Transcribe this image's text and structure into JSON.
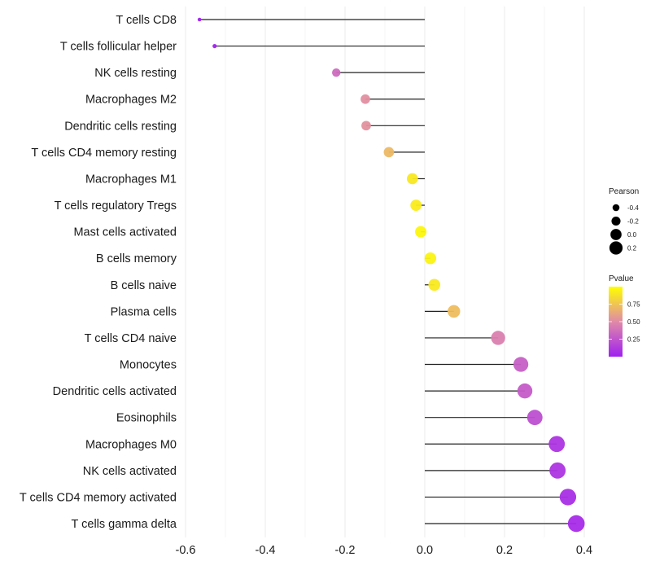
{
  "chart_data": {
    "type": "lollipop",
    "title": "",
    "xlabel": "",
    "ylabel": "",
    "xlim": [
      -0.6,
      0.4
    ],
    "x_ticks": [
      -0.6,
      -0.4,
      -0.2,
      0.0,
      0.2,
      0.4
    ],
    "x_tick_labels": [
      "-0.6",
      "-0.4",
      "-0.2",
      "0.0",
      "0.2",
      "0.4"
    ],
    "grid": true,
    "categories": [
      "T cells CD8",
      "T cells follicular helper",
      "NK cells resting",
      "Macrophages M2",
      "Dendritic cells resting",
      "T cells CD4 memory resting",
      "Macrophages M1",
      "T cells regulatory  Tregs ",
      "Mast cells activated",
      "B cells memory",
      "B cells naive",
      "Plasma cells",
      "T cells CD4 naive",
      "Monocytes",
      "Dendritic cells activated",
      "Eosinophils",
      "Macrophages M0",
      "NK cells activated",
      "T cells CD4 memory activated",
      "T cells gamma delta"
    ],
    "series": [
      {
        "name": "Pearson",
        "values": [
          -0.565,
          -0.527,
          -0.222,
          -0.149,
          -0.147,
          -0.09,
          -0.031,
          -0.022,
          -0.01,
          0.014,
          0.024,
          0.073,
          0.184,
          0.241,
          0.251,
          0.276,
          0.331,
          0.333,
          0.359,
          0.38
        ]
      },
      {
        "name": "Pvalue",
        "values": [
          0.001,
          0.003,
          0.35,
          0.52,
          0.53,
          0.7,
          0.9,
          0.92,
          0.96,
          0.95,
          0.91,
          0.72,
          0.45,
          0.3,
          0.28,
          0.22,
          0.1,
          0.1,
          0.07,
          0.05
        ]
      }
    ],
    "legend": {
      "placement": "right",
      "size_legend": {
        "title": "Pearson",
        "breaks": [
          -0.4,
          -0.2,
          0.0,
          0.2
        ],
        "labels": [
          "-0.4",
          "-0.2",
          "0.0",
          "0.2"
        ]
      },
      "color_legend": {
        "title": "Pvalue",
        "breaks": [
          0.25,
          0.5,
          0.75
        ],
        "labels": [
          "0.25",
          "0.50",
          "0.75"
        ],
        "range": [
          0.0,
          1.0
        ],
        "low_color": "#a020f0",
        "mid_color": "#e08aa8",
        "high_color": "#ffff00"
      }
    }
  }
}
